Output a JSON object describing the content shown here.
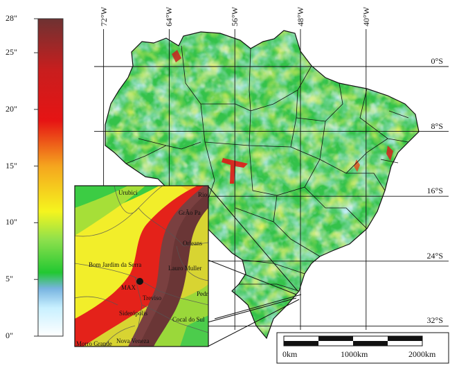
{
  "colorbar": {
    "ticks": [
      {
        "label": "0\"",
        "value": 0
      },
      {
        "label": "5\"",
        "value": 5
      },
      {
        "label": "10\"",
        "value": 10
      },
      {
        "label": "15\"",
        "value": 15
      },
      {
        "label": "20\"",
        "value": 20
      },
      {
        "label": "25\"",
        "value": 25
      },
      {
        "label": "28\"",
        "value": 28
      }
    ],
    "range": [
      0,
      28
    ],
    "stops": [
      {
        "value": 0,
        "color": "#ffffff"
      },
      {
        "value": 2.5,
        "color": "#c8f0ff"
      },
      {
        "value": 4.2,
        "color": "#78b4e0"
      },
      {
        "value": 5.6,
        "color": "#22c832"
      },
      {
        "value": 8.5,
        "color": "#8ee04c"
      },
      {
        "value": 11,
        "color": "#f5f51e"
      },
      {
        "value": 15,
        "color": "#f5a51e"
      },
      {
        "value": 19,
        "color": "#e61414"
      },
      {
        "value": 23.5,
        "color": "#c81e1e"
      },
      {
        "value": 28,
        "color": "#6e3232"
      }
    ]
  },
  "meridians": [
    {
      "label": "72°W",
      "lon": -72
    },
    {
      "label": "64°W",
      "lon": -64
    },
    {
      "label": "56°W",
      "lon": -56
    },
    {
      "label": "48°W",
      "lon": -48
    },
    {
      "label": "40°W",
      "lon": -40
    }
  ],
  "parallels": [
    {
      "label": "0°S",
      "lat": 0
    },
    {
      "label": "8°S",
      "lat": -8
    },
    {
      "label": "16°S",
      "lat": -16
    },
    {
      "label": "24°S",
      "lat": -24
    },
    {
      "label": "32°S",
      "lat": -32
    }
  ],
  "inset": {
    "marker": "MAX",
    "cities": [
      "Urubici",
      "Rio",
      "GrÃo Pa",
      "Orleans",
      "Bom Jardim da Serra",
      "Lauro Muller",
      "MAX",
      "Treviso",
      "Pedr",
      "Siderópolis",
      "Cocal do Sul",
      "Morro Grande",
      "Nova Veneza"
    ]
  },
  "scale_bar": {
    "labels": [
      "0km",
      "1000km",
      "2000km"
    ]
  },
  "colors": {
    "background": "#ffffff",
    "grid": "#111111",
    "map_base": "#34c24a"
  }
}
